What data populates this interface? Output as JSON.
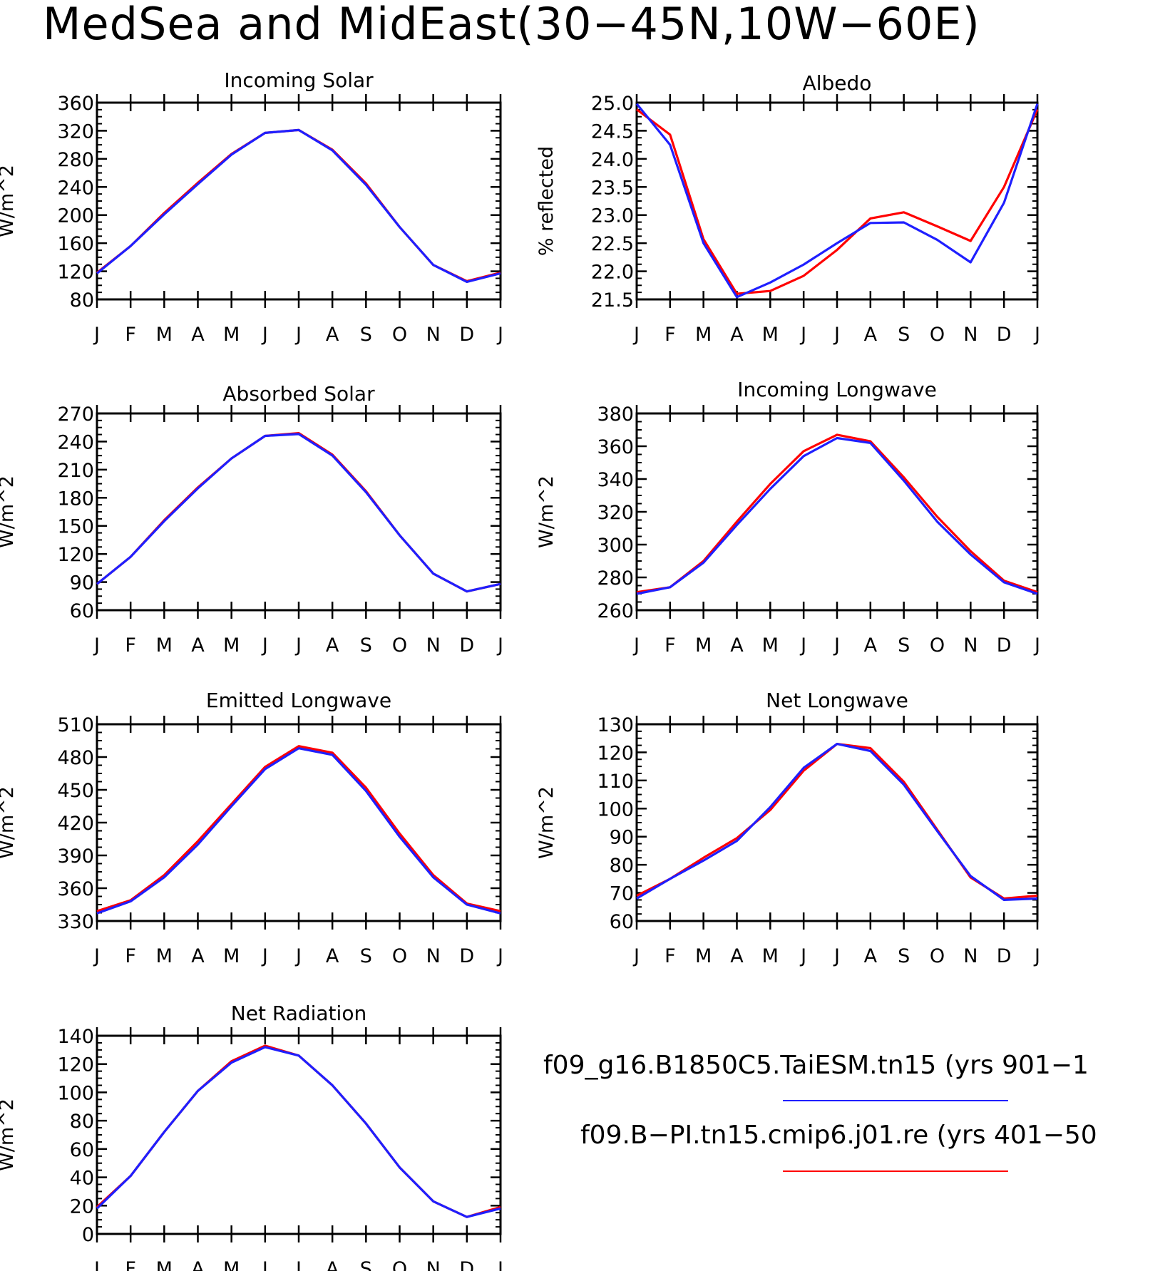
{
  "figure": {
    "title": "MedSea and MidEast(30−45N,10W−60E)",
    "line_colors": {
      "f09_g16.B1850C5.TaiESM.tn15": "#1f1fff",
      "f09.B-PI.tn15.cmip6.j01.re": "#ff0000"
    }
  },
  "legend": {
    "entries": [
      {
        "label": "f09_g16.B1850C5.TaiESM.tn15 (yrs 901−1",
        "color": "#1f1fff"
      },
      {
        "label": "f09.B−PI.tn15.cmip6.j01.re (yrs 401−50",
        "color": "#ff0000"
      }
    ]
  },
  "chart_data": [
    {
      "type": "line",
      "title": "Incoming Solar",
      "ylabel": "W/m^2",
      "categories": [
        "J",
        "F",
        "M",
        "A",
        "M",
        "J",
        "J",
        "A",
        "S",
        "O",
        "N",
        "D",
        "J"
      ],
      "ylim": [
        80,
        360
      ],
      "yticks": [
        "80",
        "120",
        "160",
        "200",
        "240",
        "280",
        "320",
        "360"
      ],
      "series": [
        {
          "name": "f09.B-PI.tn15.cmip6.j01.re",
          "color": "#ff0000",
          "values": [
            118,
            156,
            203,
            246,
            287,
            317,
            321,
            293,
            245,
            183,
            129,
            106,
            118
          ]
        },
        {
          "name": "f09_g16.B1850C5.TaiESM.tn15",
          "color": "#1f1fff",
          "values": [
            117,
            156,
            201,
            244,
            286,
            317,
            321,
            292,
            243,
            183,
            129,
            105,
            117
          ]
        }
      ]
    },
    {
      "type": "line",
      "title": "Albedo",
      "ylabel": "% reflected",
      "categories": [
        "J",
        "F",
        "M",
        "A",
        "M",
        "J",
        "J",
        "A",
        "S",
        "O",
        "N",
        "D",
        "J"
      ],
      "ylim": [
        21.5,
        25.0
      ],
      "yticks": [
        "21.5",
        "22.0",
        "22.5",
        "23.0",
        "23.5",
        "24.0",
        "24.5",
        "25.0"
      ],
      "series": [
        {
          "name": "f09.B-PI.tn15.cmip6.j01.re",
          "color": "#ff0000",
          "values": [
            24.88,
            24.43,
            22.57,
            21.6,
            21.65,
            21.92,
            22.38,
            22.94,
            23.05,
            22.8,
            22.54,
            23.5,
            24.88
          ]
        },
        {
          "name": "f09_g16.B1850C5.TaiESM.tn15",
          "color": "#1f1fff",
          "values": [
            24.98,
            24.25,
            22.5,
            21.54,
            21.8,
            22.12,
            22.5,
            22.86,
            22.87,
            22.56,
            22.16,
            23.22,
            24.98
          ]
        }
      ]
    },
    {
      "type": "line",
      "title": "Absorbed Solar",
      "ylabel": "W/m^2",
      "categories": [
        "J",
        "F",
        "M",
        "A",
        "M",
        "J",
        "J",
        "A",
        "S",
        "O",
        "N",
        "D",
        "J"
      ],
      "ylim": [
        60,
        270
      ],
      "yticks": [
        "60",
        "90",
        "120",
        "150",
        "180",
        "210",
        "240",
        "270"
      ],
      "series": [
        {
          "name": "f09.B-PI.tn15.cmip6.j01.re",
          "color": "#ff0000",
          "values": [
            88,
            117,
            156,
            191,
            222,
            246,
            249,
            226,
            187,
            140,
            99,
            80,
            88
          ]
        },
        {
          "name": "f09_g16.B1850C5.TaiESM.tn15",
          "color": "#1f1fff",
          "values": [
            88,
            117,
            155,
            190,
            222,
            246,
            248,
            225,
            186,
            140,
            99,
            80,
            88
          ]
        }
      ]
    },
    {
      "type": "line",
      "title": "Incoming Longwave",
      "ylabel": "W/m^2",
      "categories": [
        "J",
        "F",
        "M",
        "A",
        "M",
        "J",
        "J",
        "A",
        "S",
        "O",
        "N",
        "D",
        "J"
      ],
      "ylim": [
        260,
        380
      ],
      "yticks": [
        "260",
        "280",
        "300",
        "320",
        "340",
        "360",
        "380"
      ],
      "series": [
        {
          "name": "f09.B-PI.tn15.cmip6.j01.re",
          "color": "#ff0000",
          "values": [
            271,
            274,
            290,
            314,
            337,
            357,
            367,
            363,
            341,
            317,
            296,
            278,
            271
          ]
        },
        {
          "name": "f09_g16.B1850C5.TaiESM.tn15",
          "color": "#1f1fff",
          "values": [
            270,
            274,
            289,
            312,
            334,
            354,
            365,
            362,
            339,
            314,
            294,
            277,
            270
          ]
        }
      ]
    },
    {
      "type": "line",
      "title": "Emitted Longwave",
      "ylabel": "W/m^2",
      "categories": [
        "J",
        "F",
        "M",
        "A",
        "M",
        "J",
        "J",
        "A",
        "S",
        "O",
        "N",
        "D",
        "J"
      ],
      "ylim": [
        330,
        510
      ],
      "yticks": [
        "330",
        "360",
        "390",
        "420",
        "450",
        "480",
        "510"
      ],
      "series": [
        {
          "name": "f09.B-PI.tn15.cmip6.j01.re",
          "color": "#ff0000",
          "values": [
            339,
            349,
            372,
            403,
            437,
            471,
            490,
            484,
            452,
            410,
            372,
            346,
            339
          ]
        },
        {
          "name": "f09_g16.B1850C5.TaiESM.tn15",
          "color": "#1f1fff",
          "values": [
            337,
            348,
            370,
            400,
            435,
            469,
            488,
            482,
            449,
            407,
            370,
            345,
            337
          ]
        }
      ]
    },
    {
      "type": "line",
      "title": "Net Longwave",
      "ylabel": "W/m^2",
      "categories": [
        "J",
        "F",
        "M",
        "A",
        "M",
        "J",
        "J",
        "A",
        "S",
        "O",
        "N",
        "D",
        "J"
      ],
      "ylim": [
        60,
        130
      ],
      "yticks": [
        "60",
        "70",
        "80",
        "90",
        "100",
        "110",
        "120",
        "130"
      ],
      "series": [
        {
          "name": "f09.B-PI.tn15.cmip6.j01.re",
          "color": "#ff0000",
          "values": [
            69,
            75,
            82.5,
            89.5,
            99.5,
            113.5,
            123,
            121.5,
            109.5,
            92.5,
            75.5,
            68,
            69
          ]
        },
        {
          "name": "f09_g16.B1850C5.TaiESM.tn15",
          "color": "#1f1fff",
          "values": [
            68,
            75,
            81.5,
            88.5,
            100.5,
            114.5,
            123,
            120.5,
            108.5,
            92,
            76,
            67.5,
            68
          ]
        }
      ]
    },
    {
      "type": "line",
      "title": "Net Radiation",
      "ylabel": "W/m^2",
      "categories": [
        "J",
        "F",
        "M",
        "A",
        "M",
        "J",
        "J",
        "A",
        "S",
        "O",
        "N",
        "D",
        "J"
      ],
      "ylim": [
        0,
        140
      ],
      "yticks": [
        "0",
        "20",
        "40",
        "60",
        "80",
        "100",
        "120",
        "140"
      ],
      "series": [
        {
          "name": "f09.B-PI.tn15.cmip6.j01.re",
          "color": "#ff0000",
          "values": [
            19,
            41,
            72,
            101,
            122,
            133,
            126,
            105,
            78,
            47,
            23,
            12,
            19
          ]
        },
        {
          "name": "f09_g16.B1850C5.TaiESM.tn15",
          "color": "#1f1fff",
          "values": [
            18,
            41,
            72,
            101,
            121,
            132,
            126,
            105,
            78,
            47,
            23,
            12,
            18
          ]
        }
      ]
    }
  ]
}
